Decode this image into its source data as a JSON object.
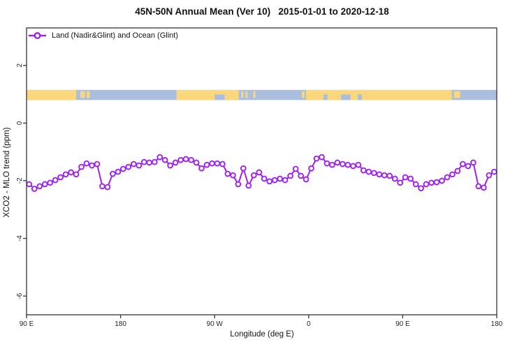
{
  "title": "45N-50N Annual Mean (Ver 10)   2015-01-01 to 2020-12-18",
  "legend": {
    "label": "Land (Nadir&Glint) and Ocean (Glint)",
    "color": "#A020F0",
    "marker": "open-circle"
  },
  "chart_data": {
    "type": "line",
    "title": "45N-50N Annual Mean (Ver 10)   2015-01-01 to 2020-12-18",
    "xlabel": "Longitude (deg E)",
    "ylabel": "XCO2 - MLO trend (ppm)",
    "grid": "off",
    "legend_position": "top-left-inside",
    "x_axis": {
      "range_deg": [
        90,
        540
      ],
      "ticks_deg": [
        90,
        180,
        270,
        360,
        450,
        540
      ],
      "tick_labels": [
        "90 E",
        "180",
        "90 W",
        "0",
        "90 E",
        "180"
      ]
    },
    "y_axis": {
      "range": [
        -6.65,
        3.3
      ],
      "ticks": [
        2,
        0,
        -2,
        -4,
        -6
      ],
      "tick_labels": [
        "2",
        "0",
        "-2",
        "-4",
        "-6"
      ]
    },
    "series": [
      {
        "name": "Land (Nadir&Glint) and Ocean (Glint)",
        "color": "#A020F0",
        "marker": "open-circle",
        "x_start_deg": 92.5,
        "x_step_deg": 5,
        "values": [
          -2.12,
          -2.28,
          -2.19,
          -2.12,
          -2.07,
          -1.98,
          -1.88,
          -1.78,
          -1.71,
          -1.78,
          -1.52,
          -1.4,
          -1.47,
          -1.42,
          -2.19,
          -2.22,
          -1.76,
          -1.69,
          -1.59,
          -1.52,
          -1.42,
          -1.47,
          -1.35,
          -1.37,
          -1.35,
          -1.18,
          -1.28,
          -1.47,
          -1.37,
          -1.28,
          -1.25,
          -1.28,
          -1.37,
          -1.57,
          -1.45,
          -1.4,
          -1.4,
          -1.42,
          -1.76,
          -1.81,
          -2.12,
          -1.57,
          -2.17,
          -1.81,
          -1.71,
          -1.93,
          -2.02,
          -1.98,
          -1.93,
          -1.98,
          -1.83,
          -1.59,
          -1.83,
          -1.95,
          -1.57,
          -1.23,
          -1.18,
          -1.4,
          -1.45,
          -1.37,
          -1.42,
          -1.45,
          -1.49,
          -1.45,
          -1.64,
          -1.69,
          -1.73,
          -1.78,
          -1.81,
          -1.83,
          -1.93,
          -2.07,
          -1.88,
          -1.93,
          -2.12,
          -2.26,
          -2.12,
          -2.07,
          -2.05,
          -2.0,
          -1.88,
          -1.78,
          -1.66,
          -1.42,
          -1.49,
          -1.37,
          -2.19,
          -2.24,
          -1.81,
          -1.69
        ]
      }
    ],
    "map_strip": {
      "description": "land-ocean strip for 45N-50N",
      "value_top": 1.15,
      "value_bottom": 0.8,
      "ocean_color": "#A9BFDD",
      "land_color": "#FBD87D",
      "land_segments_deg": [
        [
          90,
          137.5
        ],
        [
          233.5,
          293
        ],
        [
          357.5,
          497
        ]
      ],
      "island_segments_deg": [
        [
          141.5,
          146
        ],
        [
          147.5,
          150.5
        ],
        [
          295.5,
          297.5
        ],
        [
          299.5,
          301.5
        ],
        [
          307,
          309
        ],
        [
          353.5,
          356
        ],
        [
          499,
          505
        ]
      ],
      "lake_segments_deg": [
        [
          270,
          279.5
        ],
        [
          374,
          378
        ],
        [
          391,
          400
        ],
        [
          407,
          411
        ]
      ]
    },
    "axis_color": "#333333",
    "text_color": "#262626"
  }
}
